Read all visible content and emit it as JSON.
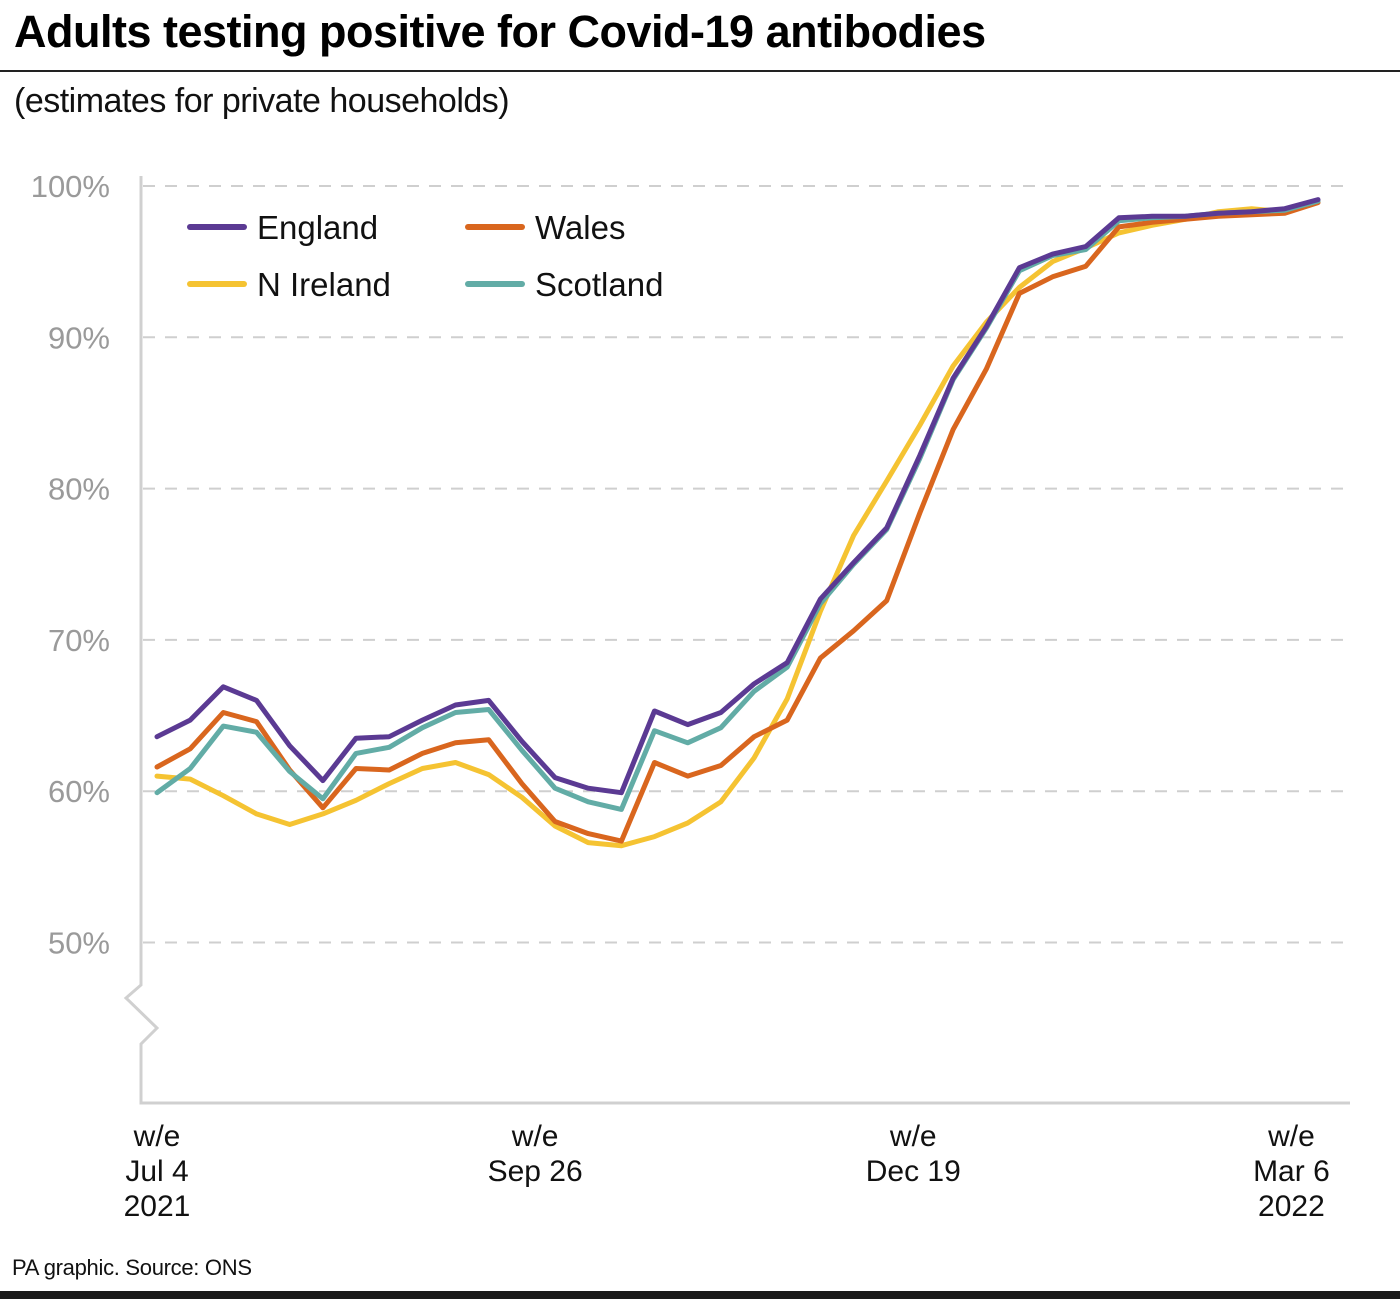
{
  "header": {
    "title": "Adults testing positive for Covid-19 antibodies",
    "subtitle": "(estimates for private households)"
  },
  "footer": {
    "source": "PA graphic. Source: ONS"
  },
  "chart_data": {
    "type": "line",
    "title": "Adults testing positive for Covid-19 antibodies",
    "subtitle": "(estimates for private households)",
    "xlabel": "",
    "ylabel": "",
    "x_unit": "week index (weekly, w/e Jul 4 2021 = 0)",
    "ylim": [
      43,
      100
    ],
    "y_axis_break": true,
    "y_ticks": [
      {
        "value": 100,
        "label": "100%"
      },
      {
        "value": 90,
        "label": "90%"
      },
      {
        "value": 80,
        "label": "80%"
      },
      {
        "value": 70,
        "label": "70%"
      },
      {
        "value": 60,
        "label": "60%"
      },
      {
        "value": 50,
        "label": "50%"
      }
    ],
    "x_ticks": [
      {
        "index": 0,
        "lines": [
          "w/e",
          "Jul 4",
          "2021"
        ]
      },
      {
        "index": 11.4,
        "lines": [
          "w/e",
          "Sep 26"
        ]
      },
      {
        "index": 22.8,
        "lines": [
          "w/e",
          "Dec 19"
        ]
      },
      {
        "index": 34.2,
        "lines": [
          "w/e",
          "Mar 6",
          "2022"
        ]
      }
    ],
    "grid": "horizontal dashed",
    "legend": {
      "placement": "top-left",
      "entries": [
        {
          "name": "England",
          "color": "#5B3A93"
        },
        {
          "name": "Wales",
          "color": "#D9661E"
        },
        {
          "name": "N Ireland",
          "color": "#F5C332"
        },
        {
          "name": "Scotland",
          "color": "#62ACA6"
        }
      ]
    },
    "series": [
      {
        "name": "England",
        "color": "#5B3A93",
        "values": [
          63.6,
          64.7,
          66.9,
          66.0,
          63.0,
          60.7,
          63.5,
          63.6,
          64.7,
          65.7,
          66.0,
          63.3,
          60.9,
          60.2,
          59.9,
          65.3,
          64.4,
          65.2,
          67.1,
          68.5,
          72.7,
          75.1,
          77.4,
          82.2,
          87.3,
          90.7,
          94.6,
          95.5,
          96.0,
          97.9,
          98.0,
          98.0,
          98.2,
          98.3,
          98.5,
          99.1
        ]
      },
      {
        "name": "Wales",
        "color": "#D9661E",
        "values": [
          61.6,
          62.8,
          65.2,
          64.6,
          61.4,
          58.9,
          61.5,
          61.4,
          62.5,
          63.2,
          63.4,
          60.5,
          58.0,
          57.2,
          56.7,
          61.9,
          61.0,
          61.7,
          63.6,
          64.7,
          68.8,
          70.6,
          72.6,
          78.4,
          83.9,
          87.9,
          92.9,
          94.0,
          94.7,
          97.3,
          97.6,
          97.8,
          98.0,
          98.1,
          98.2,
          98.9
        ]
      },
      {
        "name": "N Ireland",
        "color": "#F5C332",
        "values": [
          61.0,
          60.8,
          59.7,
          58.5,
          57.8,
          58.5,
          59.4,
          60.5,
          61.5,
          61.9,
          61.1,
          59.6,
          57.7,
          56.6,
          56.4,
          57.0,
          57.9,
          59.3,
          62.2,
          66.1,
          71.9,
          76.9,
          80.5,
          84.2,
          88.1,
          91.0,
          93.3,
          95.0,
          95.9,
          96.9,
          97.4,
          97.8,
          98.3,
          98.5,
          98.3,
          99.0
        ]
      },
      {
        "name": "Scotland",
        "color": "#62ACA6",
        "values": [
          59.9,
          61.5,
          64.3,
          63.9,
          61.3,
          59.5,
          62.5,
          62.9,
          64.2,
          65.2,
          65.4,
          62.7,
          60.2,
          59.3,
          58.8,
          64.0,
          63.2,
          64.2,
          66.6,
          68.2,
          72.4,
          75.0,
          77.3,
          82.0,
          87.2,
          90.6,
          94.4,
          95.4,
          95.8,
          97.7,
          97.9,
          98.0,
          98.2,
          98.3,
          98.4,
          99.0
        ]
      }
    ]
  }
}
